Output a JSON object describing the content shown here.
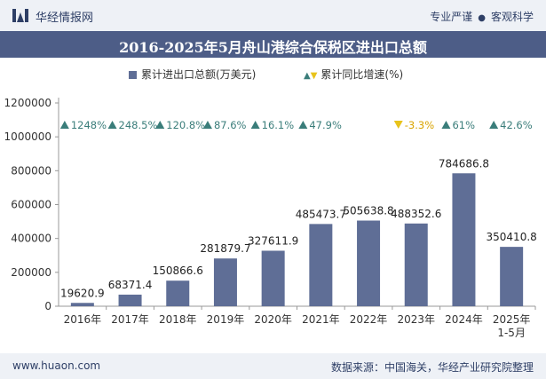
{
  "header": {
    "brand": "华经情报网",
    "slogan_left": "专业严谨",
    "slogan_right": "客观科学",
    "title": "2016-2025年5月舟山港综合保税区进出口总额"
  },
  "legend": {
    "bar": "累计进出口总额(万美元)",
    "growth": "累计同比增速(%)"
  },
  "footer": {
    "site": "www.huaon.com",
    "source": "数据来源：中国海关，华经产业研究院整理"
  },
  "chart_data": {
    "type": "bar",
    "categories": [
      "2016年",
      "2017年",
      "2018年",
      "2019年",
      "2020年",
      "2021年",
      "2022年",
      "2023年",
      "2024年",
      "2025年\n1-5月"
    ],
    "series": [
      {
        "name": "累计进出口总额(万美元)",
        "values": [
          19620.9,
          68371.4,
          150866.6,
          281879.7,
          327611.9,
          485473.7,
          505638.8,
          488352.6,
          784686.8,
          350410.8
        ],
        "labels": [
          "19620.9",
          "68371.4",
          "150866.6",
          "281879.7",
          "327611.9",
          "485473.7",
          "505638.8",
          "488352.6",
          "784686.8",
          "350410.8"
        ]
      },
      {
        "name": "累计同比增速(%)",
        "values": [
          1248,
          248.5,
          120.8,
          87.6,
          16.1,
          47.9,
          null,
          -3.3,
          61,
          42.6
        ],
        "labels": [
          "1248%",
          "248.5%",
          "120.8%",
          "87.6%",
          "16.1%",
          "47.9%",
          "",
          "-3.3%",
          "61%",
          "42.6%"
        ]
      }
    ],
    "yticks": [
      "0",
      "200000",
      "400000",
      "600000",
      "800000",
      "1000000",
      "1200000"
    ],
    "ylim": [
      0,
      1200000
    ],
    "grid": false,
    "legend_position": "top",
    "colors": {
      "bar": "#5f6e96",
      "growth_up": "#3a7d7a",
      "growth_down": "#e8c31b",
      "title_bg": "#4d5d87",
      "header_bg": "#eef1f6"
    }
  }
}
